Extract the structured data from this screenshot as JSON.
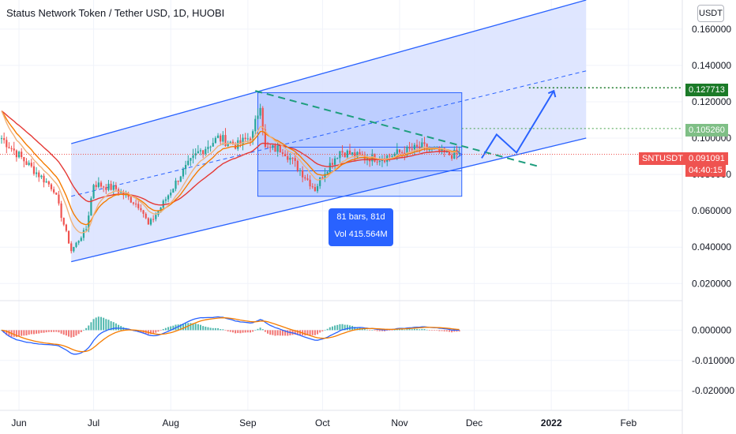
{
  "title": "Status Network Token / Tether USD, 1D, HUOBI",
  "currency_label": "USDT",
  "measure": {
    "bars": "81 bars, 81d",
    "volume": "Vol 415.564M"
  },
  "symbol_tag": "SNTUSDT",
  "price_tag": {
    "value": "0.091091",
    "countdown": "04:40:15"
  },
  "target_tags": [
    "0.127713",
    "0.105260"
  ],
  "colors": {
    "up": "#26a69a",
    "down": "#ef5350",
    "blue": "#2962ff",
    "ma_red": "#e53935",
    "ma_orange": "#f57c00",
    "ma_tan": "#f0b27a",
    "target_green": "#1b7a28",
    "target_light": "#43a047",
    "channel_fill": "#dbe3ff"
  },
  "chart_data": [
    {
      "type": "candlestick",
      "title": "Status Network Token / Tether USD, 1D, HUOBI",
      "x_labels": [
        "Jun",
        "Jul",
        "Aug",
        "Sep",
        "Oct",
        "Nov",
        "Dec",
        "2022",
        "Feb"
      ],
      "y_ticks": [
        "0.160000",
        "0.140000",
        "0.120000",
        "0.100000",
        "0.080000",
        "0.060000",
        "0.040000",
        "0.020000"
      ],
      "ylim": [
        0.011,
        0.176
      ],
      "current_price": 0.091091,
      "annotation_levels": [
        0.127713,
        0.10526
      ],
      "path_keypoints": [
        {
          "date": "2021-05-25",
          "close": 0.1
        },
        {
          "date": "2021-06-05",
          "close": 0.085
        },
        {
          "date": "2021-06-15",
          "close": 0.072
        },
        {
          "date": "2021-06-22",
          "close": 0.038
        },
        {
          "date": "2021-06-28",
          "close": 0.05
        },
        {
          "date": "2021-07-01",
          "close": 0.075
        },
        {
          "date": "2021-07-10",
          "close": 0.072
        },
        {
          "date": "2021-07-20",
          "close": 0.062
        },
        {
          "date": "2021-07-23",
          "close": 0.052
        },
        {
          "date": "2021-07-28",
          "close": 0.062
        },
        {
          "date": "2021-08-05",
          "close": 0.08
        },
        {
          "date": "2021-08-12",
          "close": 0.092
        },
        {
          "date": "2021-08-20",
          "close": 0.1
        },
        {
          "date": "2021-08-28",
          "close": 0.096
        },
        {
          "date": "2021-09-03",
          "close": 0.102
        },
        {
          "date": "2021-09-06",
          "close": 0.12
        },
        {
          "date": "2021-09-08",
          "close": 0.094
        },
        {
          "date": "2021-09-15",
          "close": 0.094
        },
        {
          "date": "2021-09-21",
          "close": 0.084
        },
        {
          "date": "2021-09-28",
          "close": 0.072
        },
        {
          "date": "2021-10-02",
          "close": 0.082
        },
        {
          "date": "2021-10-08",
          "close": 0.093
        },
        {
          "date": "2021-10-15",
          "close": 0.09
        },
        {
          "date": "2021-10-25",
          "close": 0.089
        },
        {
          "date": "2021-11-01",
          "close": 0.092
        },
        {
          "date": "2021-11-10",
          "close": 0.095
        },
        {
          "date": "2021-11-20",
          "close": 0.091
        },
        {
          "date": "2021-11-25",
          "close": 0.091
        }
      ]
    },
    {
      "type": "macd",
      "y_ticks": [
        "0.000000",
        "-0.010000",
        "-0.020000"
      ],
      "ylim": [
        -0.0265,
        0.0095
      ]
    }
  ]
}
